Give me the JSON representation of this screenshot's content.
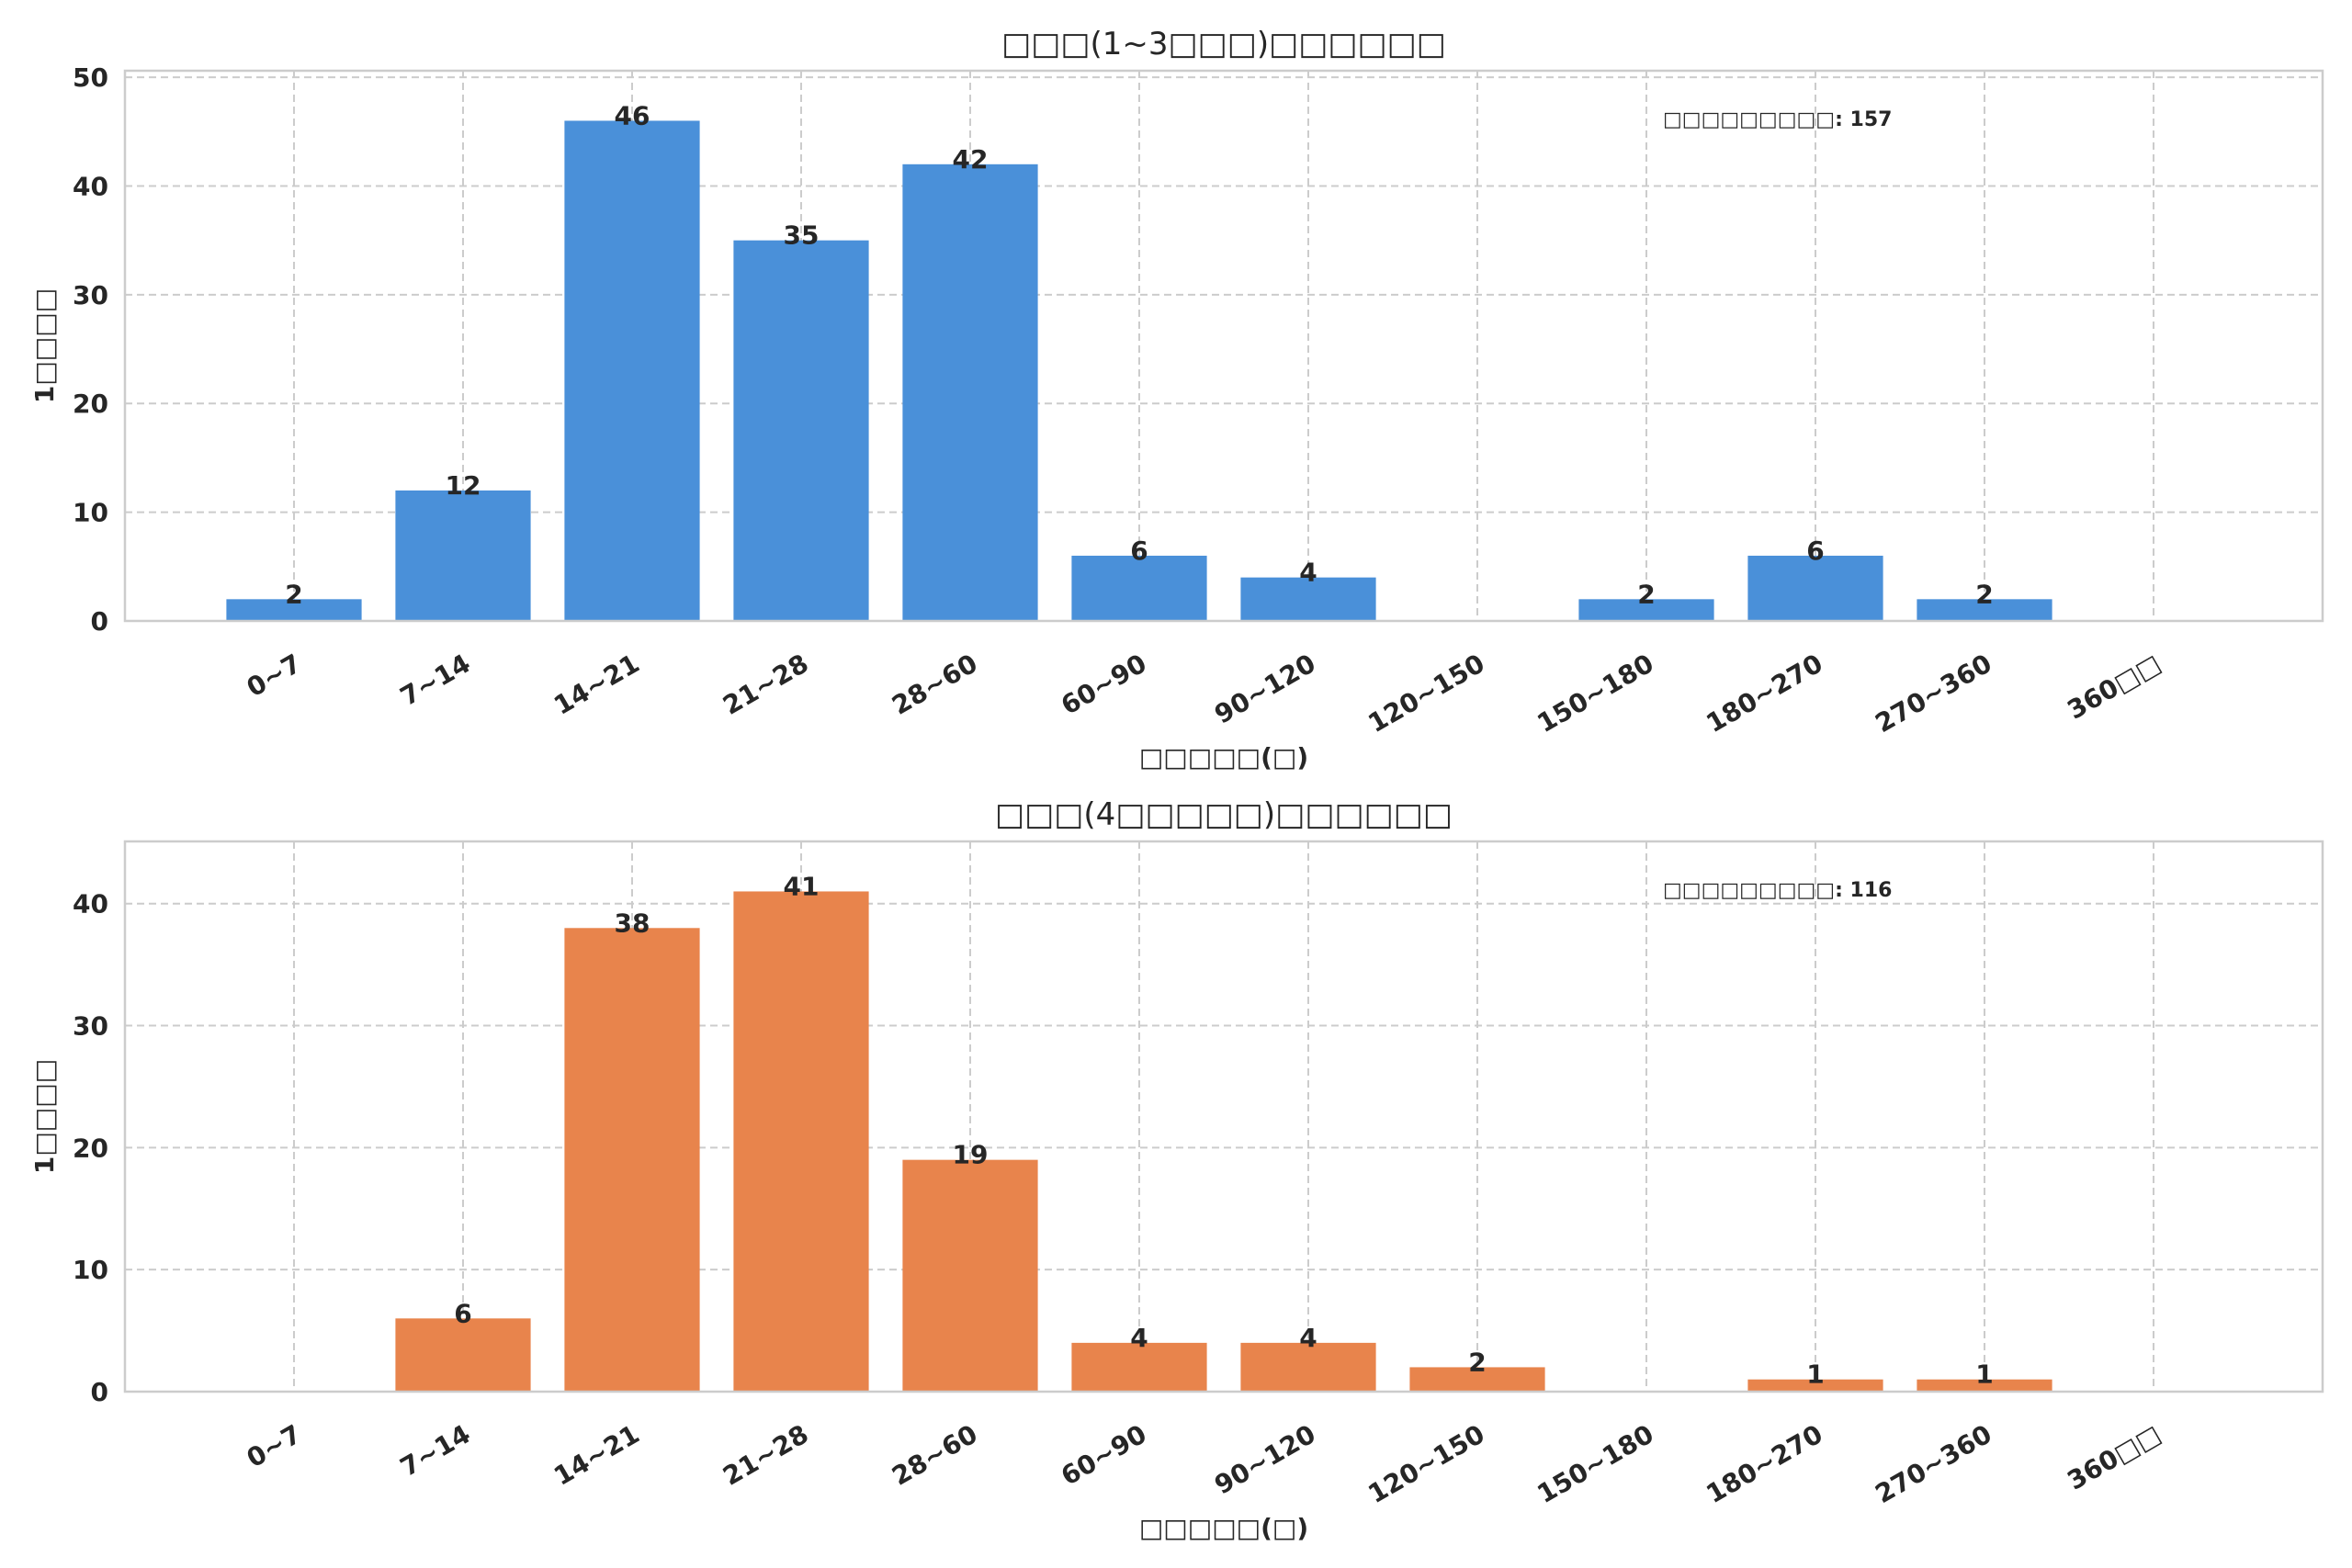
{
  "chart_data": [
    {
      "type": "bar",
      "title": "□□□(1~3□□□)□□□□□□",
      "xlabel": "□□□□□(□)",
      "ylabel": "1□□□□",
      "categories": [
        "0~7",
        "7~14",
        "14~21",
        "21~28",
        "28~60",
        "60~90",
        "90~120",
        "120~150",
        "150~180",
        "180~270",
        "270~360",
        "360□□"
      ],
      "values": [
        2,
        12,
        46,
        35,
        42,
        6,
        4,
        0,
        2,
        6,
        2,
        0
      ],
      "ylim": [
        0,
        50.6
      ],
      "yticks": [
        0,
        10,
        20,
        30,
        40,
        50
      ],
      "grid": true,
      "color": "#4A90D9",
      "annotation": "□□□□□□□□□: 157"
    },
    {
      "type": "bar",
      "title": "□□□(4□□□□□)□□□□□□",
      "xlabel": "□□□□□(□)",
      "ylabel": "1□□□□",
      "categories": [
        "0~7",
        "7~14",
        "14~21",
        "21~28",
        "28~60",
        "60~90",
        "90~120",
        "120~150",
        "150~180",
        "180~270",
        "270~360",
        "360□□"
      ],
      "values": [
        0,
        6,
        38,
        41,
        19,
        4,
        4,
        2,
        0,
        1,
        1,
        0
      ],
      "ylim": [
        0,
        45.1
      ],
      "yticks": [
        0,
        10,
        20,
        30,
        40
      ],
      "grid": true,
      "color": "#E8844C",
      "annotation": "□□□□□□□□□: 116"
    }
  ]
}
